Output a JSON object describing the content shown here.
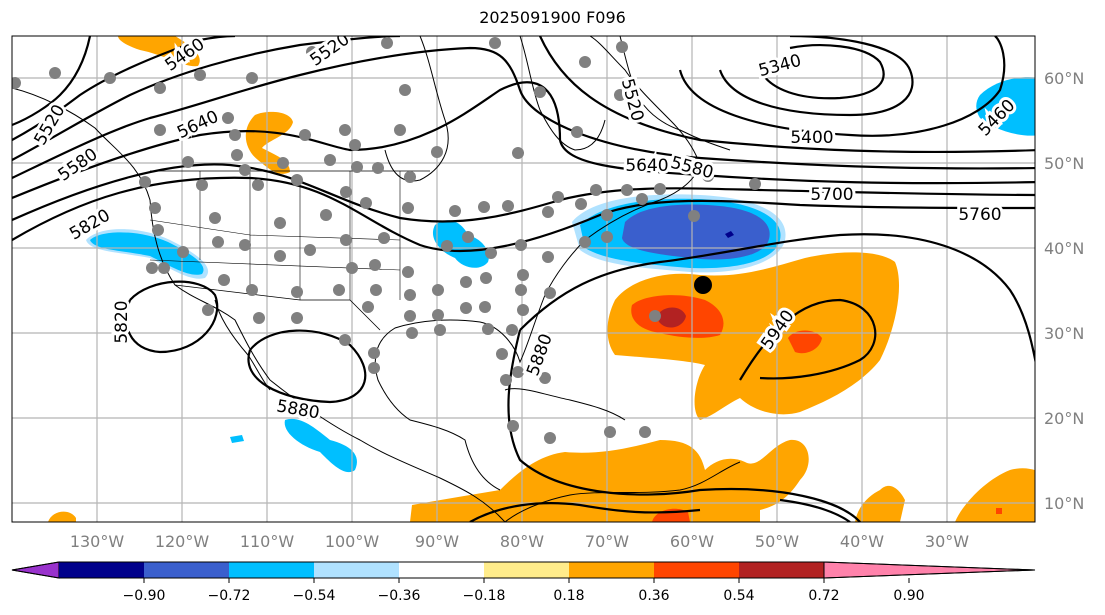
{
  "title": "2025091900 F096",
  "lon_labels": [
    "130°W",
    "120°W",
    "110°W",
    "100°W",
    "90°W",
    "80°W",
    "70°W",
    "60°W",
    "50°W",
    "40°W",
    "30°W"
  ],
  "lat_labels": [
    "60°N",
    "50°N",
    "40°N",
    "30°N",
    "20°N",
    "10°N"
  ],
  "contour_labels": [
    "5460",
    "5520",
    "5520",
    "5640",
    "5580",
    "5820",
    "5520",
    "5340",
    "5400",
    "5460",
    "5580",
    "5640",
    "5700",
    "5760",
    "5820",
    "5880",
    "5880",
    "5940"
  ],
  "colorbar": {
    "ticks": [
      "−0.90",
      "−0.72",
      "−0.54",
      "−0.36",
      "−0.18",
      "0.18",
      "0.36",
      "0.54",
      "0.72",
      "0.90"
    ],
    "colors": [
      "#9932cc",
      "#00008b",
      "#3a5fcd",
      "#00bfff",
      "#b0e2ff",
      "#ffffff",
      "#ffec8b",
      "#ffa500",
      "#ff4500",
      "#b22222",
      "#ff82ab"
    ]
  },
  "fill_colors": {
    "orange": "#ffa500",
    "red": "#ff4500",
    "darkred": "#b22222",
    "cyan": "#00bfff",
    "lightblue": "#b0e2ff",
    "royalblue": "#3a5fcd",
    "navy": "#00008b",
    "yellow": "#ffec8b"
  }
}
